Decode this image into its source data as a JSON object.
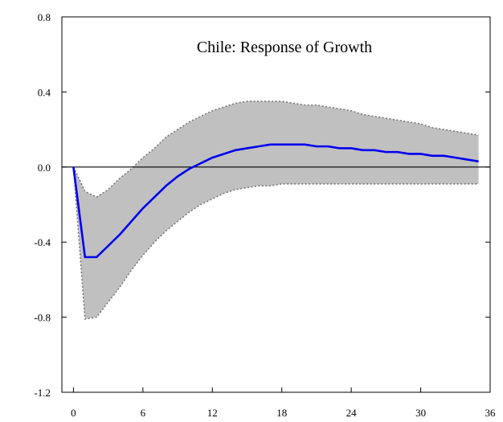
{
  "chart_data": {
    "type": "line",
    "title": "Chile: Response of Growth",
    "xlabel": "",
    "ylabel": "",
    "xlim": [
      -1,
      36
    ],
    "ylim": [
      -1.2,
      0.8
    ],
    "x_ticks": [
      0,
      6,
      12,
      18,
      24,
      30,
      36
    ],
    "x_tick_labels": [
      "0",
      "6",
      "12",
      "18",
      "24",
      "30",
      "36"
    ],
    "y_ticks": [
      0.8,
      0.4,
      0.0,
      -0.4,
      -0.8,
      -1.2
    ],
    "y_tick_labels": [
      "0.8",
      "0.4",
      "0.0",
      "-0.4",
      "-0.8",
      "-1.2"
    ],
    "grid": false,
    "zero_line": true,
    "colors": {
      "response": "#0000ee",
      "band_fill": "#c0c0c0",
      "band_edge": "#777777",
      "axis": "#000000"
    },
    "x": [
      0,
      1,
      2,
      3,
      4,
      5,
      6,
      7,
      8,
      9,
      10,
      11,
      12,
      13,
      14,
      15,
      16,
      17,
      18,
      19,
      20,
      21,
      22,
      23,
      24,
      25,
      26,
      27,
      28,
      29,
      30,
      31,
      32,
      33,
      34,
      35
    ],
    "series": [
      {
        "role": "response",
        "values": [
          0.0,
          -0.48,
          -0.48,
          -0.42,
          -0.36,
          -0.29,
          -0.22,
          -0.16,
          -0.1,
          -0.05,
          -0.01,
          0.02,
          0.05,
          0.07,
          0.09,
          0.1,
          0.11,
          0.12,
          0.12,
          0.12,
          0.12,
          0.11,
          0.11,
          0.1,
          0.1,
          0.09,
          0.09,
          0.08,
          0.08,
          0.07,
          0.07,
          0.06,
          0.06,
          0.05,
          0.04,
          0.03
        ]
      },
      {
        "role": "upper-band",
        "values": [
          0.0,
          -0.13,
          -0.16,
          -0.12,
          -0.06,
          -0.01,
          0.05,
          0.1,
          0.16,
          0.2,
          0.24,
          0.27,
          0.3,
          0.32,
          0.34,
          0.35,
          0.35,
          0.35,
          0.35,
          0.34,
          0.33,
          0.33,
          0.32,
          0.31,
          0.3,
          0.28,
          0.27,
          0.26,
          0.25,
          0.24,
          0.23,
          0.21,
          0.2,
          0.19,
          0.18,
          0.17
        ]
      },
      {
        "role": "lower-band",
        "values": [
          0.0,
          -0.81,
          -0.8,
          -0.72,
          -0.64,
          -0.55,
          -0.47,
          -0.4,
          -0.34,
          -0.29,
          -0.24,
          -0.2,
          -0.17,
          -0.14,
          -0.12,
          -0.11,
          -0.1,
          -0.1,
          -0.09,
          -0.09,
          -0.09,
          -0.09,
          -0.09,
          -0.09,
          -0.09,
          -0.09,
          -0.09,
          -0.09,
          -0.09,
          -0.09,
          -0.09,
          -0.09,
          -0.09,
          -0.09,
          -0.09,
          -0.09
        ]
      }
    ]
  }
}
